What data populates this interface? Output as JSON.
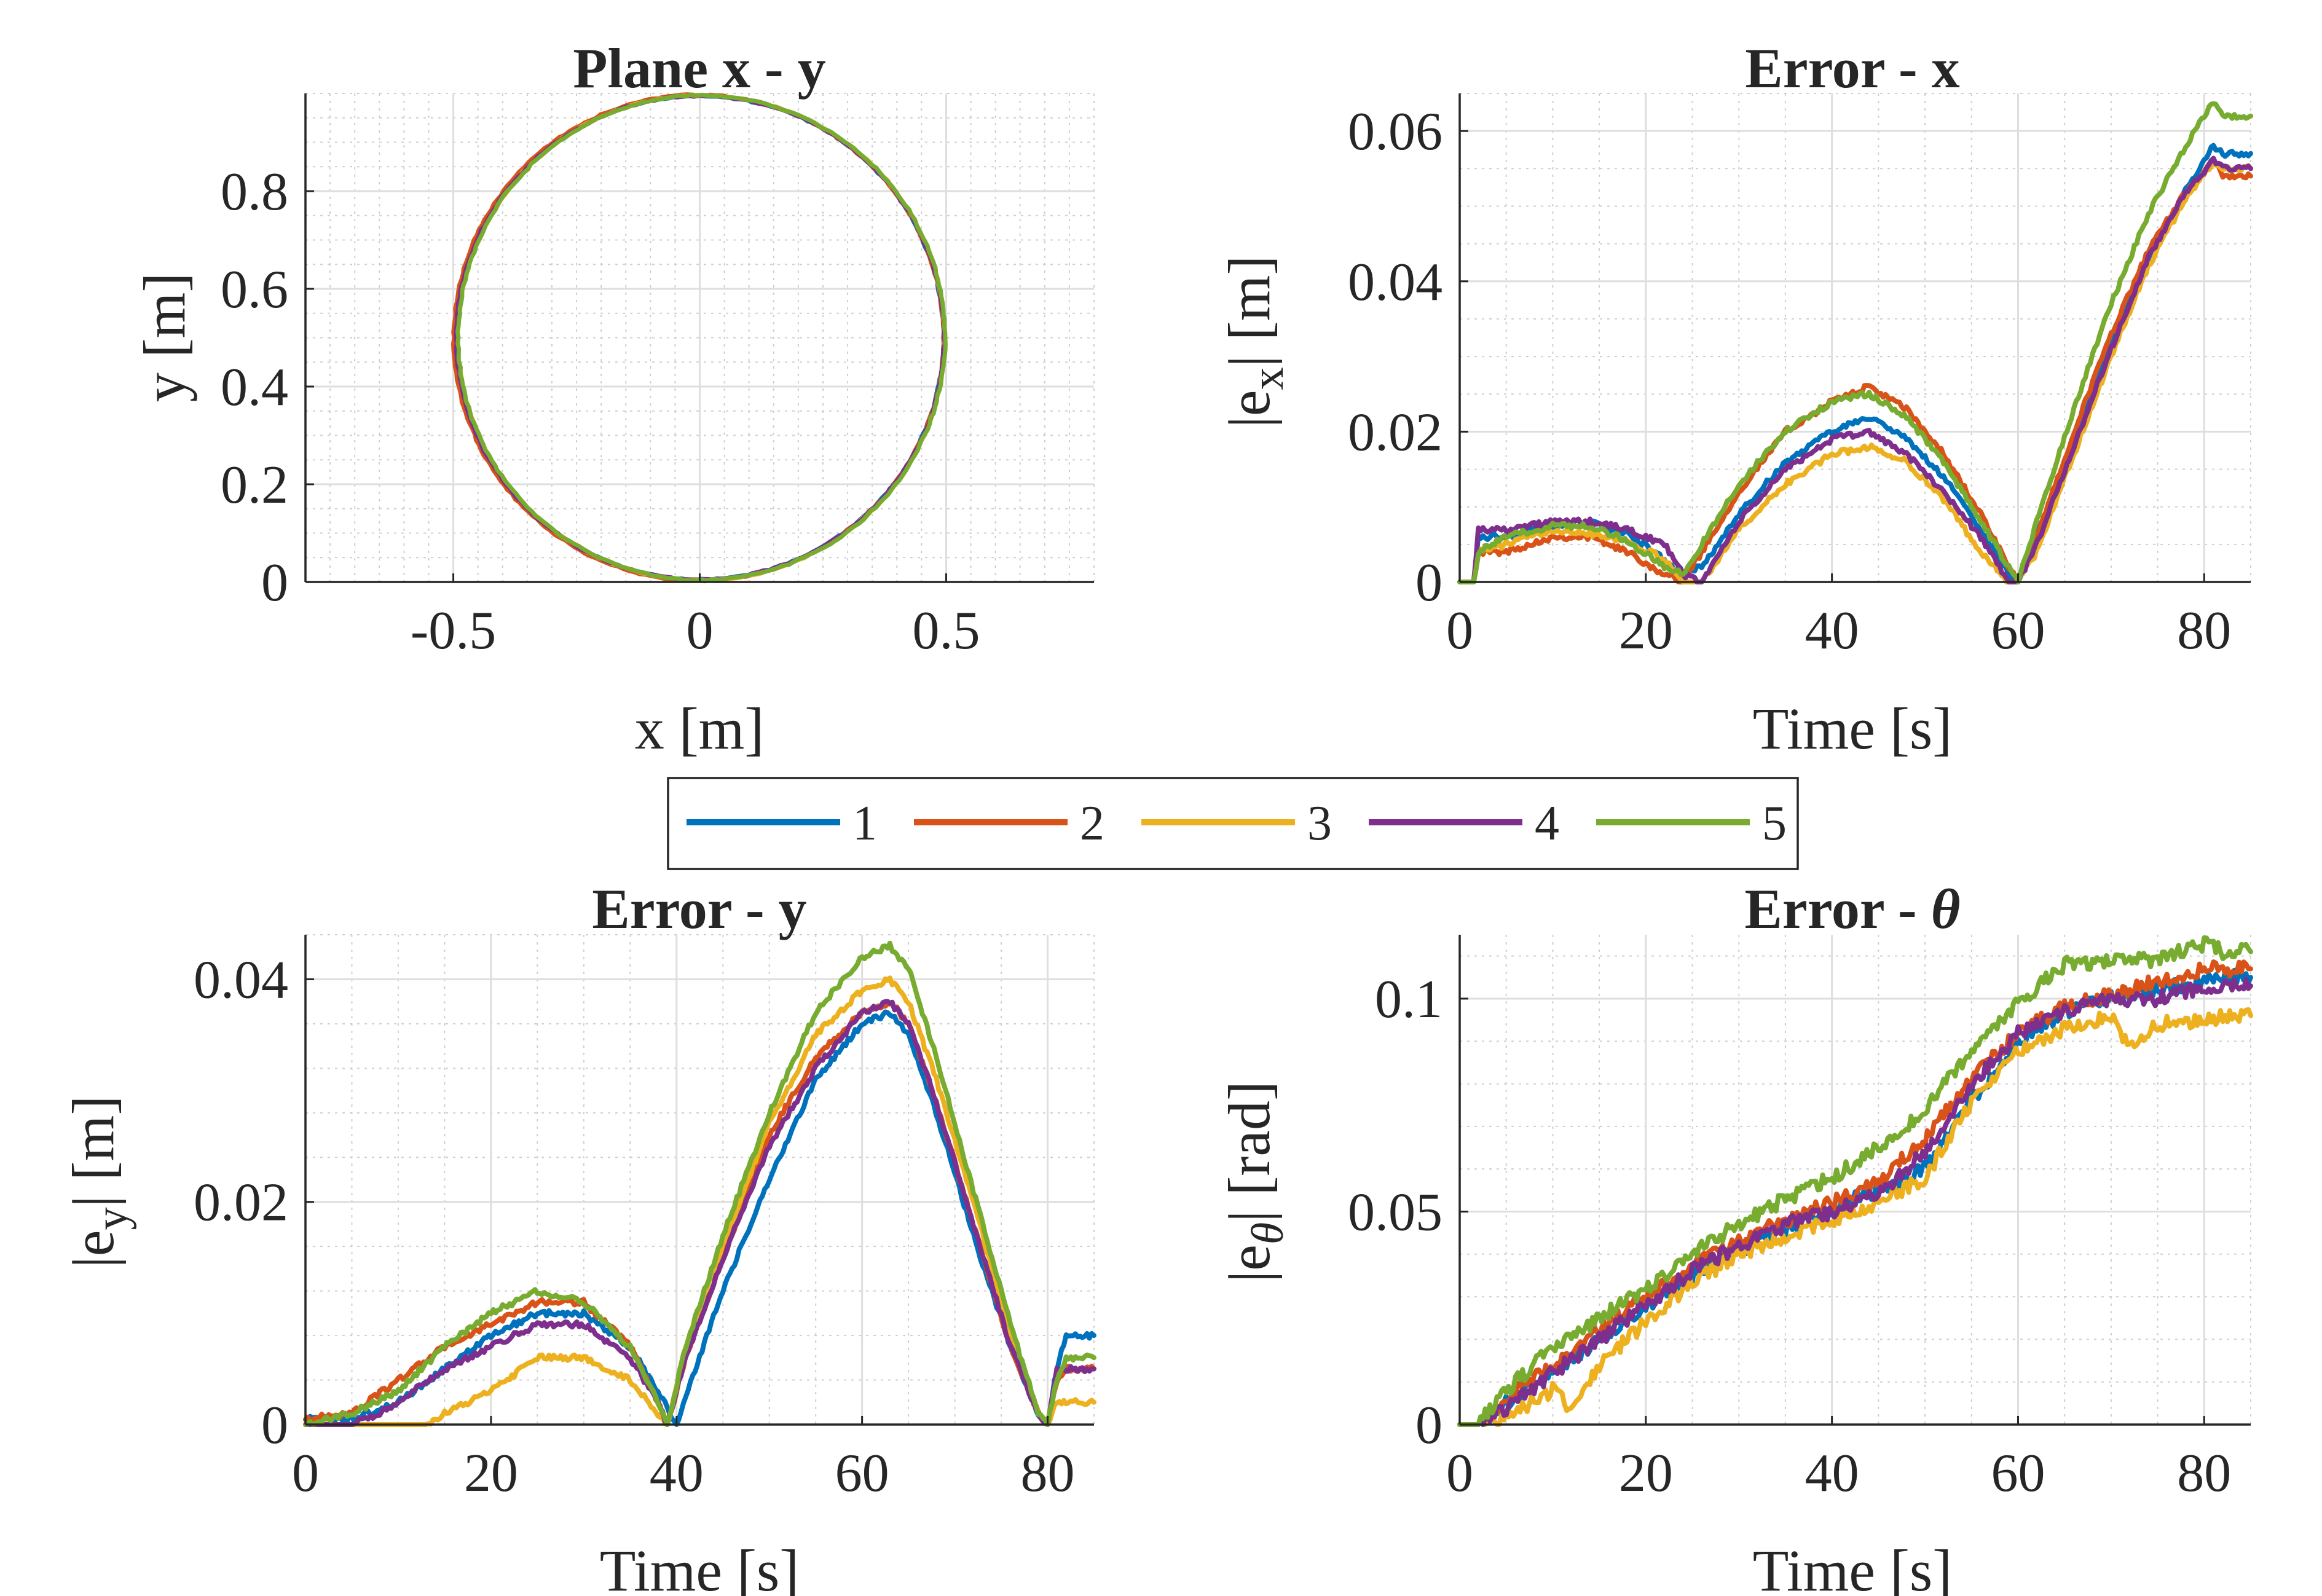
{
  "colors": {
    "s1": "#0072BD",
    "s2": "#D95319",
    "s3": "#EDB120",
    "s4": "#7E2F8E",
    "s5": "#77AC30"
  },
  "legend": [
    "1",
    "2",
    "3",
    "4",
    "5"
  ],
  "chart_data": [
    {
      "id": "xy",
      "type": "line",
      "title": "Plane x - y",
      "xlabel": "x [m]",
      "ylabel": "y [m]",
      "xlim": [
        -0.8,
        0.8
      ],
      "ylim": [
        0,
        1.0
      ],
      "xticks": [
        -0.5,
        0,
        0.5
      ],
      "xtick_labels": [
        "-0.5",
        "0",
        "0.5"
      ],
      "yticks": [
        0,
        0.2,
        0.4,
        0.6,
        0.8
      ],
      "ytick_labels": [
        "0",
        "0.2",
        "0.4",
        "0.6",
        "0.8"
      ],
      "series": [
        {
          "name": "1",
          "cx": 0.0,
          "cy": 0.5,
          "rx": 0.495,
          "ry": 0.495
        },
        {
          "name": "2",
          "cx": -0.002,
          "cy": 0.5,
          "rx": 0.497,
          "ry": 0.497
        },
        {
          "name": "3",
          "cx": 0.003,
          "cy": 0.5,
          "rx": 0.494,
          "ry": 0.496
        },
        {
          "name": "4",
          "cx": 0.001,
          "cy": 0.5,
          "rx": 0.495,
          "ry": 0.495
        },
        {
          "name": "5",
          "cx": 0.004,
          "cy": 0.5,
          "rx": 0.494,
          "ry": 0.496
        }
      ]
    },
    {
      "id": "ex",
      "type": "line",
      "title": "Error - x",
      "xlabel": "Time [s]",
      "ylabel": "|e_x| [m]",
      "ylabel_main": "|e",
      "ylabel_sub": "x",
      "ylabel_tail": "| [m]",
      "xlim": [
        0,
        85
      ],
      "ylim": [
        0,
        0.065
      ],
      "xticks": [
        0,
        20,
        40,
        60,
        80
      ],
      "xtick_labels": [
        "0",
        "20",
        "40",
        "60",
        "80"
      ],
      "yticks": [
        0,
        0.02,
        0.04,
        0.06
      ],
      "ytick_labels": [
        "0",
        "0.02",
        "0.04",
        "0.06"
      ],
      "series": [
        {
          "name": "1",
          "x": [
            0,
            1.5,
            2,
            5,
            10,
            14,
            18,
            22,
            24,
            26,
            30,
            35,
            40,
            44,
            48,
            52,
            56,
            59,
            60,
            62,
            66,
            70,
            74,
            78,
            81,
            82,
            85
          ],
          "y": [
            0,
            0,
            0.006,
            0.006,
            0.0075,
            0.008,
            0.0065,
            0.003,
            0.001,
            0.002,
            0.009,
            0.016,
            0.02,
            0.022,
            0.019,
            0.014,
            0.007,
            0.001,
            0.0,
            0.006,
            0.019,
            0.032,
            0.043,
            0.052,
            0.058,
            0.057,
            0.057
          ]
        },
        {
          "name": "2",
          "x": [
            0,
            1.5,
            2,
            5,
            10,
            14,
            18,
            22,
            24,
            26,
            30,
            35,
            40,
            44,
            48,
            52,
            56,
            59,
            60,
            62,
            66,
            70,
            74,
            78,
            81,
            82,
            85
          ],
          "y": [
            0,
            0,
            0.004,
            0.004,
            0.006,
            0.006,
            0.004,
            0.001,
            0.0,
            0.004,
            0.012,
            0.02,
            0.024,
            0.026,
            0.023,
            0.017,
            0.009,
            0.002,
            0.0,
            0.006,
            0.02,
            0.033,
            0.044,
            0.052,
            0.056,
            0.054,
            0.054
          ]
        },
        {
          "name": "3",
          "x": [
            0,
            1.5,
            2,
            5,
            10,
            14,
            18,
            22,
            24,
            26,
            30,
            35,
            40,
            44,
            48,
            52,
            56,
            59,
            60,
            62,
            66,
            70,
            74,
            78,
            81,
            82,
            85
          ],
          "y": [
            0,
            0,
            0.004,
            0.005,
            0.007,
            0.0065,
            0.0055,
            0.003,
            0.0,
            0.0,
            0.007,
            0.013,
            0.017,
            0.018,
            0.016,
            0.011,
            0.004,
            0.0,
            0.0,
            0.004,
            0.017,
            0.03,
            0.042,
            0.051,
            0.056,
            0.055,
            0.055
          ]
        },
        {
          "name": "4",
          "x": [
            0,
            1.5,
            2,
            5,
            10,
            14,
            18,
            22,
            24,
            26,
            30,
            35,
            40,
            44,
            48,
            52,
            56,
            59,
            60,
            62,
            66,
            70,
            74,
            78,
            81,
            82,
            85
          ],
          "y": [
            0,
            0,
            0.007,
            0.007,
            0.008,
            0.008,
            0.007,
            0.005,
            0.001,
            0.0,
            0.008,
            0.015,
            0.019,
            0.02,
            0.017,
            0.012,
            0.006,
            0.0,
            0.0,
            0.005,
            0.018,
            0.031,
            0.043,
            0.052,
            0.056,
            0.055,
            0.055
          ]
        },
        {
          "name": "5",
          "x": [
            0,
            1.5,
            2,
            5,
            10,
            14,
            18,
            22,
            24,
            26,
            30,
            35,
            40,
            44,
            48,
            52,
            56,
            59,
            60,
            62,
            66,
            70,
            74,
            78,
            81,
            82,
            85
          ],
          "y": [
            0,
            0,
            0.004,
            0.006,
            0.0075,
            0.0075,
            0.0055,
            0.002,
            0.001,
            0.005,
            0.013,
            0.02,
            0.024,
            0.025,
            0.022,
            0.016,
            0.008,
            0.002,
            0.0,
            0.008,
            0.023,
            0.037,
            0.049,
            0.058,
            0.064,
            0.062,
            0.062
          ]
        }
      ]
    },
    {
      "id": "ey",
      "type": "line",
      "title": "Error - y",
      "xlabel": "Time [s]",
      "ylabel": "|e_y| [m]",
      "ylabel_main": "|e",
      "ylabel_sub": "y",
      "ylabel_tail": "| [m]",
      "xlim": [
        0,
        85
      ],
      "ylim": [
        0,
        0.044
      ],
      "xticks": [
        0,
        20,
        40,
        60,
        80
      ],
      "xtick_labels": [
        "0",
        "20",
        "40",
        "60",
        "80"
      ],
      "yticks": [
        0,
        0.02,
        0.04
      ],
      "ytick_labels": [
        "0",
        "0.02",
        "0.04"
      ],
      "series": [
        {
          "name": "1",
          "x": [
            0,
            5,
            10,
            15,
            20,
            25,
            30,
            35,
            38,
            40,
            42,
            45,
            50,
            55,
            60,
            63,
            65,
            68,
            72,
            76,
            79,
            80,
            81,
            82,
            85
          ],
          "y": [
            0.0005,
            0.0005,
            0.002,
            0.005,
            0.008,
            0.01,
            0.01,
            0.007,
            0.003,
            0.0,
            0.005,
            0.012,
            0.022,
            0.031,
            0.036,
            0.037,
            0.035,
            0.028,
            0.017,
            0.007,
            0.001,
            0.0,
            0.005,
            0.008,
            0.008
          ]
        },
        {
          "name": "2",
          "x": [
            0,
            5,
            10,
            15,
            20,
            25,
            30,
            35,
            38,
            39,
            41,
            45,
            50,
            55,
            60,
            63,
            65,
            68,
            72,
            76,
            79,
            80,
            81,
            82,
            85
          ],
          "y": [
            0.0005,
            0.001,
            0.004,
            0.007,
            0.009,
            0.011,
            0.011,
            0.007,
            0.002,
            0.0,
            0.006,
            0.015,
            0.026,
            0.033,
            0.037,
            0.038,
            0.036,
            0.029,
            0.018,
            0.007,
            0.001,
            0.0,
            0.004,
            0.005,
            0.005
          ]
        },
        {
          "name": "3",
          "x": [
            0,
            5,
            10,
            13,
            15,
            20,
            25,
            30,
            35,
            38,
            39,
            41,
            45,
            50,
            55,
            60,
            63,
            65,
            68,
            72,
            76,
            79,
            80,
            81,
            82,
            85
          ],
          "y": [
            0.0,
            0.0,
            0.0,
            0.0,
            0.001,
            0.003,
            0.006,
            0.006,
            0.004,
            0.001,
            0.0,
            0.007,
            0.016,
            0.027,
            0.035,
            0.039,
            0.04,
            0.038,
            0.031,
            0.02,
            0.008,
            0.001,
            0.0,
            0.002,
            0.002,
            0.002
          ]
        },
        {
          "name": "4",
          "x": [
            0,
            5,
            8,
            10,
            15,
            20,
            25,
            30,
            35,
            38,
            39,
            41,
            45,
            50,
            55,
            60,
            63,
            65,
            68,
            72,
            76,
            79,
            80,
            81,
            82,
            85
          ],
          "y": [
            0.0,
            0.0,
            0.001,
            0.002,
            0.005,
            0.007,
            0.009,
            0.009,
            0.006,
            0.002,
            0.0,
            0.006,
            0.015,
            0.025,
            0.032,
            0.037,
            0.038,
            0.036,
            0.029,
            0.018,
            0.007,
            0.001,
            0.0,
            0.005,
            0.005,
            0.005
          ]
        },
        {
          "name": "5",
          "x": [
            0,
            5,
            10,
            15,
            20,
            25,
            30,
            35,
            38,
            39,
            41,
            45,
            50,
            55,
            60,
            63,
            65,
            68,
            72,
            76,
            79,
            80,
            81,
            82,
            85
          ],
          "y": [
            0.0,
            0.001,
            0.003,
            0.007,
            0.01,
            0.012,
            0.011,
            0.007,
            0.002,
            0.0,
            0.007,
            0.017,
            0.028,
            0.037,
            0.042,
            0.043,
            0.041,
            0.033,
            0.021,
            0.009,
            0.001,
            0.0,
            0.004,
            0.006,
            0.006
          ]
        }
      ]
    },
    {
      "id": "et",
      "type": "line",
      "title": "Error - θ",
      "title_main": "Error - ",
      "title_symbol": "θ",
      "xlabel": "Time [s]",
      "ylabel": "|e_θ| [rad]",
      "ylabel_main": "|e",
      "ylabel_sub": "θ",
      "ylabel_tail": "| [rad]",
      "xlim": [
        0,
        85
      ],
      "ylim": [
        0,
        0.115
      ],
      "xticks": [
        0,
        20,
        40,
        60,
        80
      ],
      "xtick_labels": [
        "0",
        "20",
        "40",
        "60",
        "80"
      ],
      "yticks": [
        0,
        0.05,
        0.1
      ],
      "ytick_labels": [
        "0",
        "0.05",
        "0.1"
      ],
      "series": [
        {
          "name": "1",
          "x": [
            0,
            2,
            5,
            10,
            15,
            20,
            25,
            30,
            35,
            40,
            45,
            50,
            55,
            60,
            65,
            70,
            75,
            80,
            82,
            85
          ],
          "y": [
            0,
            0,
            0.005,
            0.012,
            0.02,
            0.028,
            0.035,
            0.041,
            0.046,
            0.051,
            0.055,
            0.06,
            0.076,
            0.089,
            0.097,
            0.1,
            0.102,
            0.104,
            0.105,
            0.105
          ]
        },
        {
          "name": "2",
          "x": [
            0,
            2,
            5,
            10,
            15,
            20,
            25,
            30,
            35,
            40,
            45,
            50,
            55,
            60,
            65,
            70,
            75,
            80,
            82,
            85
          ],
          "y": [
            0,
            0,
            0.006,
            0.014,
            0.022,
            0.03,
            0.037,
            0.043,
            0.048,
            0.052,
            0.057,
            0.067,
            0.081,
            0.092,
            0.098,
            0.101,
            0.104,
            0.107,
            0.107,
            0.107
          ]
        },
        {
          "name": "3",
          "x": [
            0,
            2,
            5,
            10,
            12,
            15,
            20,
            25,
            30,
            35,
            40,
            45,
            50,
            55,
            60,
            65,
            70,
            72,
            75,
            80,
            82,
            85
          ],
          "y": [
            0,
            0,
            0.002,
            0.008,
            0.004,
            0.014,
            0.024,
            0.033,
            0.04,
            0.044,
            0.048,
            0.052,
            0.058,
            0.076,
            0.088,
            0.093,
            0.096,
            0.088,
            0.094,
            0.095,
            0.096,
            0.096
          ]
        },
        {
          "name": "4",
          "x": [
            0,
            2,
            5,
            10,
            15,
            20,
            25,
            30,
            35,
            40,
            45,
            50,
            55,
            60,
            65,
            70,
            75,
            80,
            82,
            85
          ],
          "y": [
            0,
            0,
            0.004,
            0.012,
            0.02,
            0.028,
            0.036,
            0.042,
            0.047,
            0.05,
            0.054,
            0.064,
            0.08,
            0.092,
            0.097,
            0.1,
            0.1,
            0.103,
            0.103,
            0.103
          ]
        },
        {
          "name": "5",
          "x": [
            0,
            2,
            5,
            10,
            15,
            20,
            25,
            30,
            35,
            40,
            45,
            50,
            55,
            60,
            65,
            70,
            75,
            80,
            82,
            85
          ],
          "y": [
            0,
            0,
            0.008,
            0.018,
            0.025,
            0.032,
            0.04,
            0.047,
            0.053,
            0.058,
            0.065,
            0.074,
            0.088,
            0.099,
            0.108,
            0.109,
            0.109,
            0.113,
            0.111,
            0.111
          ]
        }
      ]
    }
  ]
}
